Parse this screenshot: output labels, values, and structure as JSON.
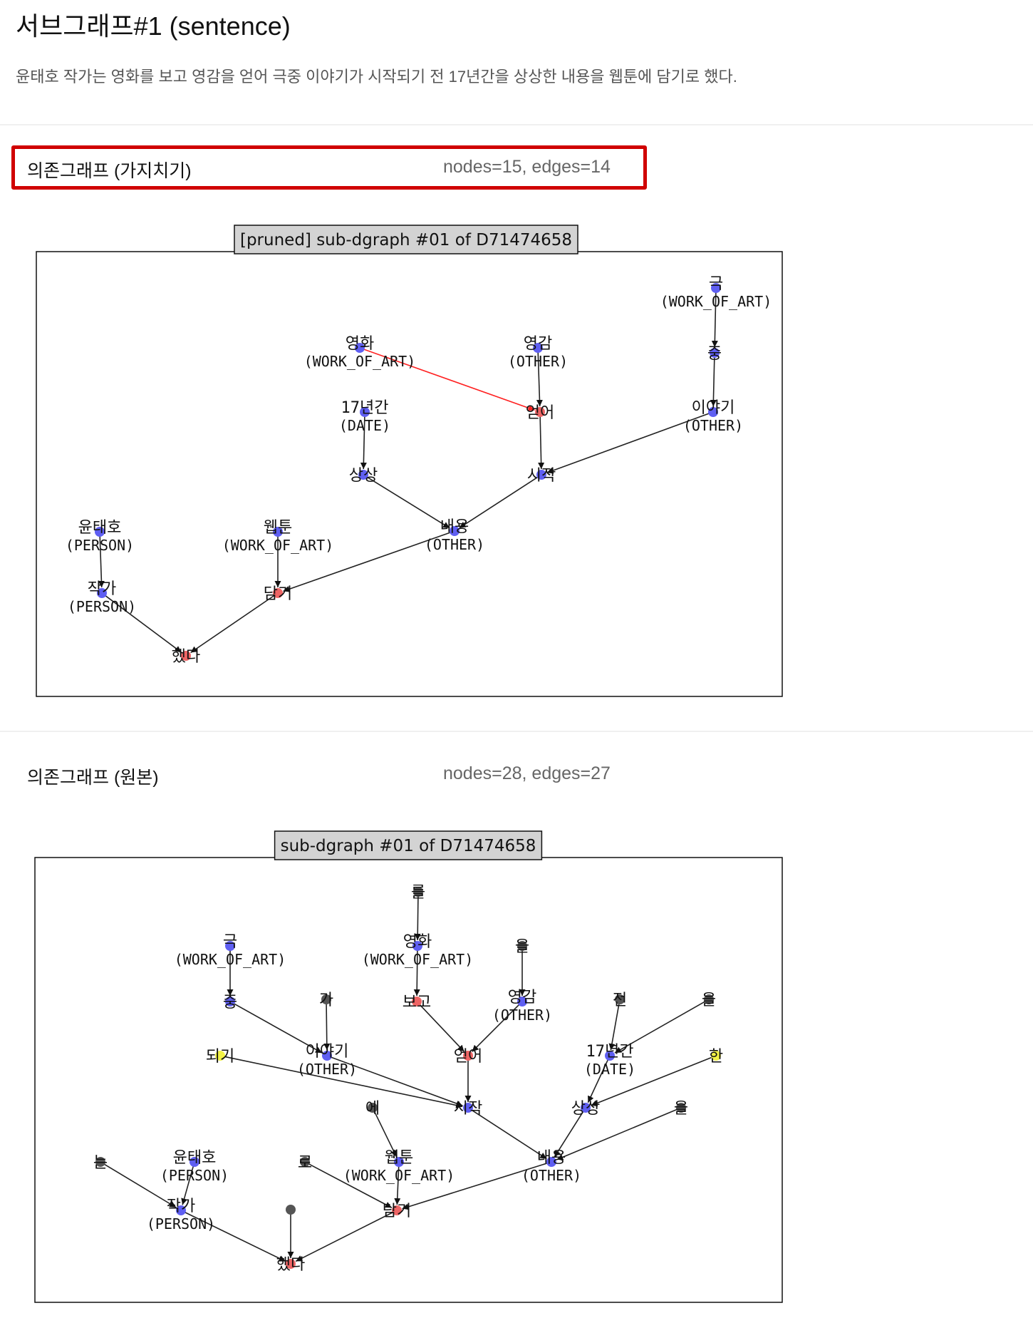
{
  "title": "서브그래프#1 (sentence)",
  "sentence": "윤태호 작가는 영화를 보고 영감을 얻어 극중 이야기가 시작되기 전 17년간을 상상한 내용을 웹툰에 담기로 했다.",
  "colors": {
    "highlight": "#d00000",
    "blue_node": "#5f5ff2",
    "red_node": "#ee6565",
    "yellow_node": "#f2f246",
    "gray_node": "#555555",
    "red_edge": "#ff2020"
  },
  "pruned": {
    "label": "의존그래프 (가지치기)",
    "stats": "nodes=15, edges=14",
    "graph_title": "[pruned] sub-dgraph #01 of D71474658",
    "nodes": [
      {
        "id": "n1",
        "label": "극",
        "sub": "(WORK_OF_ART)",
        "color": "blue"
      },
      {
        "id": "n2",
        "label": "중",
        "sub": "",
        "color": "blue"
      },
      {
        "id": "n3",
        "label": "이야기",
        "sub": "(OTHER)",
        "color": "blue"
      },
      {
        "id": "n4",
        "label": "영화",
        "sub": "(WORK_OF_ART)",
        "color": "blue"
      },
      {
        "id": "n5",
        "label": "영감",
        "sub": "(OTHER)",
        "color": "blue"
      },
      {
        "id": "n6",
        "label": "얻어",
        "sub": "",
        "color": "red"
      },
      {
        "id": "n7",
        "label": "17년간",
        "sub": "(DATE)",
        "color": "blue"
      },
      {
        "id": "n8",
        "label": "상상",
        "sub": "",
        "color": "blue"
      },
      {
        "id": "n9",
        "label": "시작",
        "sub": "",
        "color": "blue"
      },
      {
        "id": "n10",
        "label": "내용",
        "sub": "(OTHER)",
        "color": "blue"
      },
      {
        "id": "n11",
        "label": "윤태호",
        "sub": "(PERSON)",
        "color": "blue"
      },
      {
        "id": "n12",
        "label": "웹툰",
        "sub": "(WORK_OF_ART)",
        "color": "blue"
      },
      {
        "id": "n13",
        "label": "작가",
        "sub": "(PERSON)",
        "color": "blue"
      },
      {
        "id": "n14",
        "label": "담기",
        "sub": "",
        "color": "red"
      },
      {
        "id": "n15",
        "label": "했다",
        "sub": "",
        "color": "red"
      }
    ],
    "edges": [
      {
        "from": "n1",
        "to": "n2",
        "color": "black"
      },
      {
        "from": "n2",
        "to": "n3",
        "color": "black"
      },
      {
        "from": "n4",
        "to": "n6",
        "color": "red"
      },
      {
        "from": "n5",
        "to": "n6",
        "color": "black"
      },
      {
        "from": "n6",
        "to": "n9",
        "color": "black"
      },
      {
        "from": "n3",
        "to": "n9",
        "color": "black"
      },
      {
        "from": "n7",
        "to": "n8",
        "color": "black"
      },
      {
        "from": "n8",
        "to": "n10",
        "color": "black"
      },
      {
        "from": "n9",
        "to": "n10",
        "color": "black"
      },
      {
        "from": "n10",
        "to": "n14",
        "color": "black"
      },
      {
        "from": "n12",
        "to": "n14",
        "color": "black"
      },
      {
        "from": "n11",
        "to": "n13",
        "color": "black"
      },
      {
        "from": "n13",
        "to": "n15",
        "color": "black"
      },
      {
        "from": "n14",
        "to": "n15",
        "color": "black"
      }
    ]
  },
  "original": {
    "label": "의존그래프 (원본)",
    "stats": "nodes=28, edges=27",
    "graph_title": "sub-dgraph #01 of D71474658",
    "nodes": [
      {
        "id": "m1",
        "label": "를",
        "sub": "",
        "color": "gray"
      },
      {
        "id": "m2",
        "label": "극",
        "sub": "(WORK_OF_ART)",
        "color": "blue"
      },
      {
        "id": "m3",
        "label": "영화",
        "sub": "(WORK_OF_ART)",
        "color": "blue"
      },
      {
        "id": "m4",
        "label": "을",
        "sub": "",
        "color": "gray"
      },
      {
        "id": "m5",
        "label": "중",
        "sub": "",
        "color": "blue"
      },
      {
        "id": "m6",
        "label": "가",
        "sub": "",
        "color": "gray"
      },
      {
        "id": "m7",
        "label": "보고",
        "sub": "",
        "color": "red"
      },
      {
        "id": "m8",
        "label": "영감",
        "sub": "(OTHER)",
        "color": "blue"
      },
      {
        "id": "m9",
        "label": "전",
        "sub": "",
        "color": "gray"
      },
      {
        "id": "m10",
        "label": "을",
        "sub": "",
        "color": "gray"
      },
      {
        "id": "m11",
        "label": "되기",
        "sub": "",
        "color": "yellow"
      },
      {
        "id": "m12",
        "label": "이야기",
        "sub": "(OTHER)",
        "color": "blue"
      },
      {
        "id": "m13",
        "label": "얻어",
        "sub": "",
        "color": "red"
      },
      {
        "id": "m14",
        "label": "17년간",
        "sub": "(DATE)",
        "color": "blue"
      },
      {
        "id": "m15",
        "label": "한",
        "sub": "",
        "color": "yellow"
      },
      {
        "id": "m16",
        "label": "에",
        "sub": "",
        "color": "gray"
      },
      {
        "id": "m17",
        "label": "시작",
        "sub": "",
        "color": "blue"
      },
      {
        "id": "m18",
        "label": "상상",
        "sub": "",
        "color": "blue"
      },
      {
        "id": "m19",
        "label": "을",
        "sub": "",
        "color": "gray"
      },
      {
        "id": "m20",
        "label": "는",
        "sub": "",
        "color": "gray"
      },
      {
        "id": "m21",
        "label": "윤태호",
        "sub": "(PERSON)",
        "color": "blue"
      },
      {
        "id": "m22",
        "label": "로",
        "sub": "",
        "color": "gray"
      },
      {
        "id": "m23",
        "label": "웹툰",
        "sub": "(WORK_OF_ART)",
        "color": "blue"
      },
      {
        "id": "m24",
        "label": "내용",
        "sub": "(OTHER)",
        "color": "blue"
      },
      {
        "id": "m25",
        "label": "작가",
        "sub": "(PERSON)",
        "color": "blue"
      },
      {
        "id": "m26",
        "label": "담기",
        "sub": "",
        "color": "red"
      },
      {
        "id": "m27",
        "label": "",
        "sub": "",
        "color": "gray"
      },
      {
        "id": "m28",
        "label": "했다",
        "sub": "",
        "color": "red"
      }
    ],
    "edges": [
      {
        "from": "m1",
        "to": "m3",
        "color": "black"
      },
      {
        "from": "m3",
        "to": "m7",
        "color": "black"
      },
      {
        "from": "m2",
        "to": "m5",
        "color": "black"
      },
      {
        "from": "m4",
        "to": "m8",
        "color": "black"
      },
      {
        "from": "m5",
        "to": "m12",
        "color": "black"
      },
      {
        "from": "m6",
        "to": "m12",
        "color": "black"
      },
      {
        "from": "m7",
        "to": "m13",
        "color": "black"
      },
      {
        "from": "m8",
        "to": "m13",
        "color": "black"
      },
      {
        "from": "m9",
        "to": "m14",
        "color": "black"
      },
      {
        "from": "m10",
        "to": "m14",
        "color": "black"
      },
      {
        "from": "m11",
        "to": "m17",
        "color": "black"
      },
      {
        "from": "m12",
        "to": "m17",
        "color": "black"
      },
      {
        "from": "m13",
        "to": "m17",
        "color": "black"
      },
      {
        "from": "m14",
        "to": "m18",
        "color": "black"
      },
      {
        "from": "m15",
        "to": "m18",
        "color": "black"
      },
      {
        "from": "m16",
        "to": "m23",
        "color": "black"
      },
      {
        "from": "m17",
        "to": "m24",
        "color": "black"
      },
      {
        "from": "m18",
        "to": "m24",
        "color": "black"
      },
      {
        "from": "m19",
        "to": "m24",
        "color": "black"
      },
      {
        "from": "m20",
        "to": "m25",
        "color": "black"
      },
      {
        "from": "m21",
        "to": "m25",
        "color": "black"
      },
      {
        "from": "m22",
        "to": "m26",
        "color": "black"
      },
      {
        "from": "m23",
        "to": "m26",
        "color": "black"
      },
      {
        "from": "m24",
        "to": "m26",
        "color": "black"
      },
      {
        "from": "m25",
        "to": "m28",
        "color": "black"
      },
      {
        "from": "m26",
        "to": "m28",
        "color": "black"
      },
      {
        "from": "m27",
        "to": "m28",
        "color": "black"
      }
    ]
  }
}
